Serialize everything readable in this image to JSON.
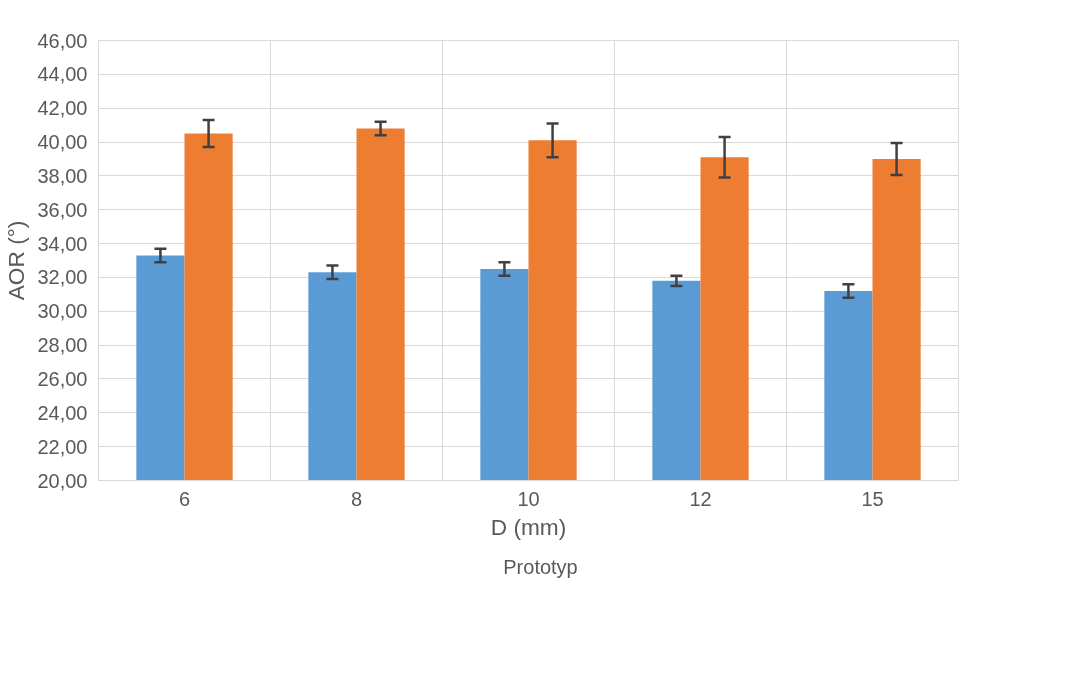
{
  "chart_data": {
    "type": "bar",
    "xlabel": "D (mm)",
    "ylabel": "AOR (°)",
    "categories": [
      "6",
      "8",
      "10",
      "12",
      "15"
    ],
    "series": [
      {
        "name": "Prototyp",
        "color": "#5b9bd5",
        "values": [
          33.3,
          32.3,
          32.5,
          31.8,
          31.2
        ],
        "errors": [
          0.4,
          0.4,
          0.4,
          0.3,
          0.4
        ]
      },
      {
        "color": "#ed7d31",
        "values": [
          40.5,
          40.8,
          40.1,
          39.1,
          39.0
        ],
        "errors": [
          0.8,
          0.4,
          1.0,
          1.2,
          0.95
        ]
      }
    ],
    "ylim": [
      20,
      46
    ],
    "yticks": [
      {
        "value": 20,
        "label": "20,00"
      },
      {
        "value": 22,
        "label": "22,00"
      },
      {
        "value": 24,
        "label": "24,00"
      },
      {
        "value": 26,
        "label": "26,00"
      },
      {
        "value": 28,
        "label": "28,00"
      },
      {
        "value": 30,
        "label": "30,00"
      },
      {
        "value": 32,
        "label": "32,00"
      },
      {
        "value": 34,
        "label": "34,00"
      },
      {
        "value": 36,
        "label": "36,00"
      },
      {
        "value": 38,
        "label": "38,00"
      },
      {
        "value": 40,
        "label": "40,00"
      },
      {
        "value": 42,
        "label": "42,00"
      },
      {
        "value": 44,
        "label": "44,00"
      },
      {
        "value": 46,
        "label": "46,00"
      }
    ],
    "grid": true,
    "legend": "bottom"
  }
}
